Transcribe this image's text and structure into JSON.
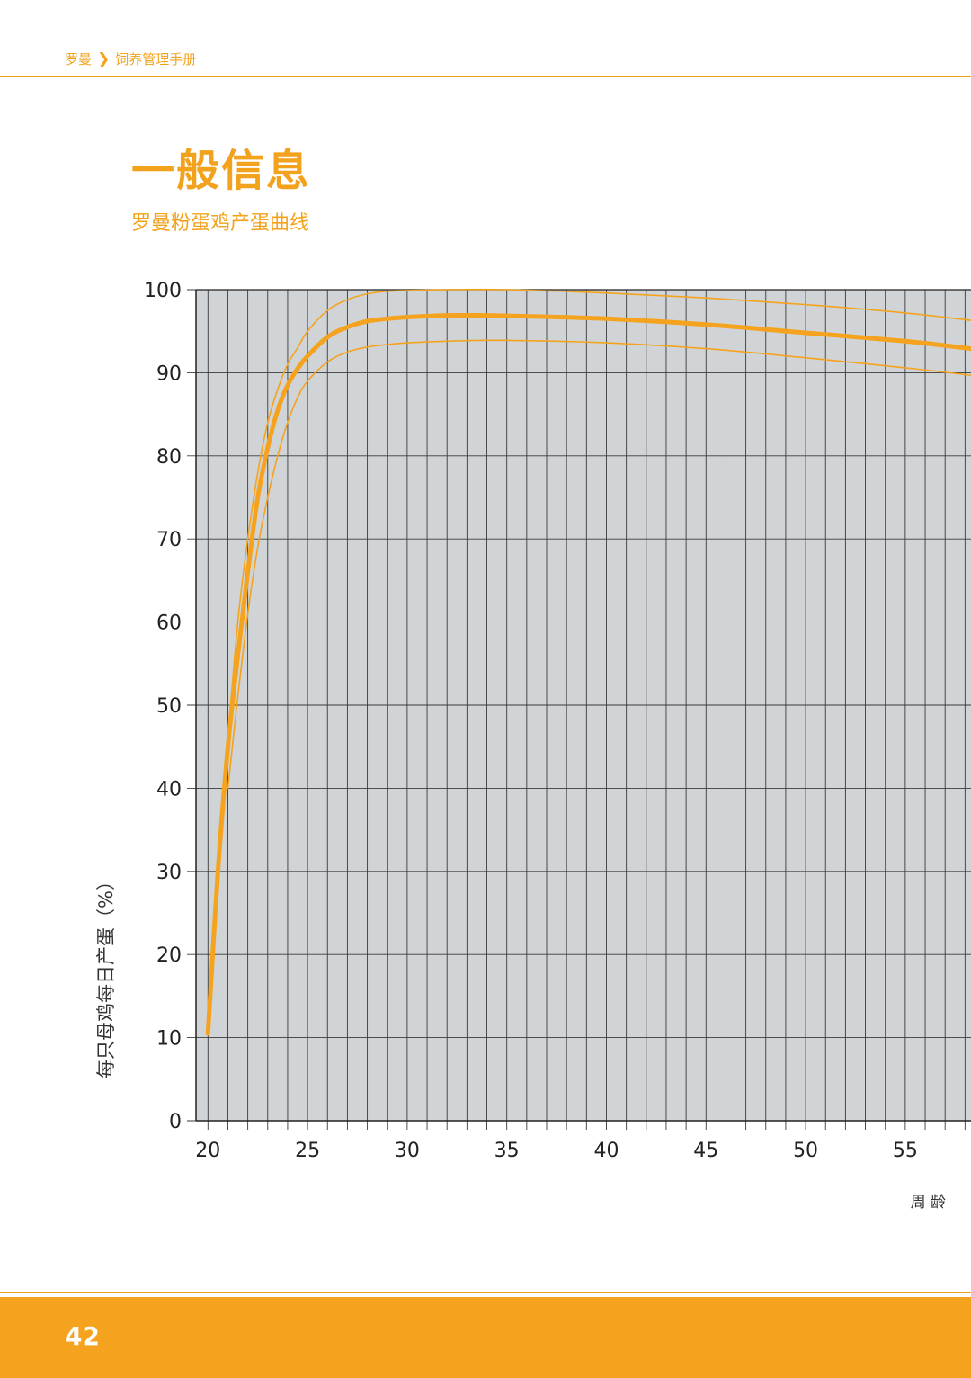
{
  "header": {
    "breadcrumb_brand": "罗曼",
    "breadcrumb_chevron": "❯",
    "breadcrumb_section": "饲养管理手册"
  },
  "page_title": "一般信息",
  "subtitle": "罗曼粉蛋鸡产蛋曲线",
  "footer": {
    "page_number": "42"
  },
  "colors": {
    "accent": "#f5a31e",
    "plot_bg": "#d0d4d6",
    "grid": "#3a3a3a"
  },
  "chart_data": {
    "type": "line",
    "title": "罗曼粉蛋鸡产蛋曲线",
    "xlabel": "周 龄",
    "ylabel": "每只母鸡每日产蛋（%）",
    "xlim": [
      19.4,
      58.3
    ],
    "ylim": [
      0,
      100
    ],
    "x_ticks": [
      20,
      25,
      30,
      35,
      40,
      45,
      50,
      55
    ],
    "y_ticks": [
      0,
      10,
      20,
      30,
      40,
      50,
      60,
      70,
      80,
      90,
      100
    ],
    "grid": true,
    "series": [
      {
        "role": "standard",
        "x": [
          20,
          20.5,
          21,
          21.5,
          22,
          22.5,
          23,
          23.5,
          24,
          24.5,
          25,
          26,
          27,
          28,
          29,
          30,
          32,
          34,
          36,
          40,
          45,
          50,
          55,
          58.3
        ],
        "values": [
          10.5,
          30,
          45,
          56,
          66,
          75,
          81,
          85.5,
          88.5,
          90.5,
          92,
          94.3,
          95.5,
          96.2,
          96.5,
          96.7,
          96.9,
          96.9,
          96.8,
          96.5,
          95.8,
          94.8,
          93.8,
          92.9
        ]
      },
      {
        "role": "upper",
        "x": [
          21,
          21.5,
          22,
          22.5,
          23,
          23.5,
          24,
          24.5,
          25,
          26,
          27,
          28,
          29,
          30,
          32,
          35,
          40,
          45,
          50,
          55,
          58.3
        ],
        "values": [
          46,
          60,
          70,
          78,
          84,
          88,
          91,
          93,
          95,
          97.5,
          98.8,
          99.5,
          99.8,
          99.9,
          100,
          100,
          99.6,
          99,
          98.2,
          97.2,
          96.3
        ]
      },
      {
        "role": "lower",
        "x": [
          21,
          21.5,
          22,
          22.5,
          23,
          23.5,
          24,
          24.5,
          25,
          26,
          27,
          28,
          29,
          30,
          32,
          35,
          40,
          45,
          50,
          55,
          58.3
        ],
        "values": [
          40,
          51,
          61,
          69,
          75,
          80,
          84,
          87,
          89,
          91.3,
          92.5,
          93.1,
          93.4,
          93.6,
          93.8,
          93.9,
          93.6,
          92.9,
          91.8,
          90.6,
          89.7
        ]
      }
    ]
  }
}
